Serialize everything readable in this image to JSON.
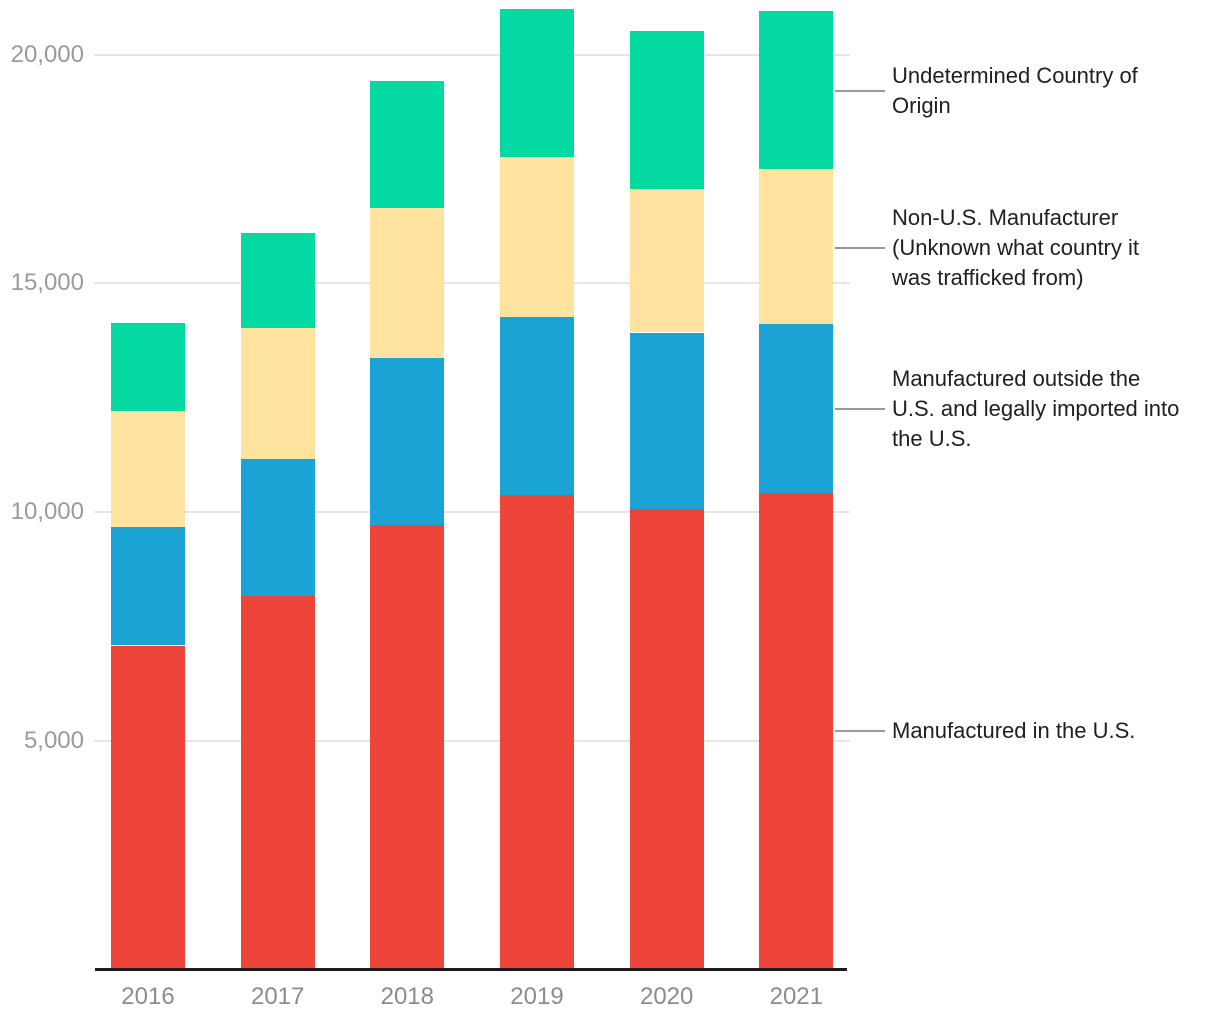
{
  "chart_data": {
    "type": "bar",
    "stacked": true,
    "title": "",
    "xlabel": "",
    "ylabel": "",
    "ylim": [
      0,
      21000
    ],
    "grid": true,
    "legend_position": "right",
    "categories": [
      "2016",
      "2017",
      "2018",
      "2019",
      "2020",
      "2021"
    ],
    "series": [
      {
        "id": "us",
        "name": "Manufactured in the U.S.",
        "color": "#ee453a",
        "values": [
          7050,
          8140,
          9690,
          10330,
          10040,
          10390
        ]
      },
      {
        "id": "imported",
        "name": "Manufactured outside the U.S. and legally imported into the U.S.",
        "color": "#1ba3d5",
        "values": [
          2580,
          2980,
          3650,
          3890,
          3850,
          3690
        ]
      },
      {
        "id": "nonus",
        "name": "Non-U.S. Manufacturer (Unknown what country it was trafficked from)",
        "color": "#ffe39e",
        "values": [
          2540,
          2860,
          3270,
          3500,
          3130,
          3390
        ]
      },
      {
        "id": "undetermined",
        "name": "Undetermined Country of Origin",
        "color": "#03d9a1",
        "values": [
          1930,
          2090,
          2780,
          3250,
          3460,
          3440
        ]
      }
    ],
    "totals": [
      14100,
      16070,
      19390,
      20970,
      20480,
      20910
    ],
    "yticks": [
      {
        "value": 5000,
        "label": "5,000"
      },
      {
        "value": 10000,
        "label": "10,000"
      },
      {
        "value": 15000,
        "label": "15,000"
      },
      {
        "value": 20000,
        "label": "20,000"
      }
    ],
    "legend": [
      {
        "series": "undetermined",
        "label": "Undetermined Country of\nOrigin"
      },
      {
        "series": "nonus",
        "label": "Non-U.S. Manufacturer\n(Unknown what country it\nwas trafficked from)"
      },
      {
        "series": "imported",
        "label": "Manufactured outside the\nU.S. and legally imported into\nthe U.S."
      },
      {
        "series": "us",
        "label": "Manufactured in the U.S."
      }
    ]
  }
}
